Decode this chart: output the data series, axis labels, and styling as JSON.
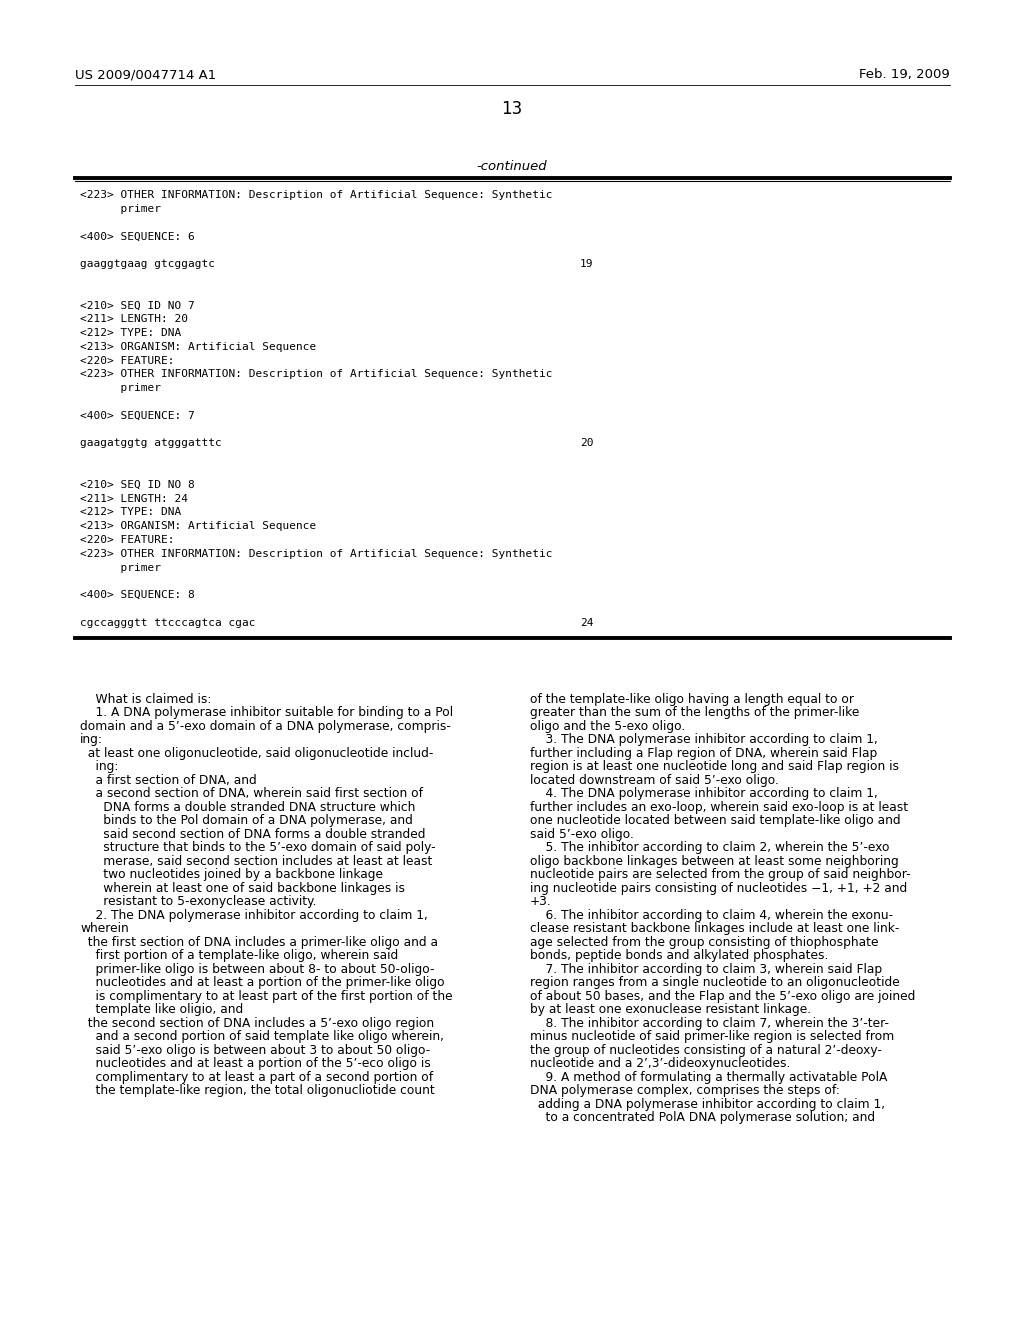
{
  "background_color": "#ffffff",
  "header_left": "US 2009/0047714 A1",
  "header_right": "Feb. 19, 2009",
  "page_number": "13",
  "continued_label": "-continued",
  "table_lines": [
    {
      "text": "<223> OTHER INFORMATION: Description of Artificial Sequence: Synthetic",
      "type": "mono"
    },
    {
      "text": "      primer",
      "type": "mono"
    },
    {
      "text": "",
      "type": "mono"
    },
    {
      "text": "<400> SEQUENCE: 6",
      "type": "mono"
    },
    {
      "text": "",
      "type": "mono"
    },
    {
      "text": "gaaggtgaag gtcggagtc",
      "type": "seq",
      "num": "19"
    },
    {
      "text": "",
      "type": "mono"
    },
    {
      "text": "",
      "type": "mono"
    },
    {
      "text": "<210> SEQ ID NO 7",
      "type": "mono"
    },
    {
      "text": "<211> LENGTH: 20",
      "type": "mono"
    },
    {
      "text": "<212> TYPE: DNA",
      "type": "mono"
    },
    {
      "text": "<213> ORGANISM: Artificial Sequence",
      "type": "mono"
    },
    {
      "text": "<220> FEATURE:",
      "type": "mono"
    },
    {
      "text": "<223> OTHER INFORMATION: Description of Artificial Sequence: Synthetic",
      "type": "mono"
    },
    {
      "text": "      primer",
      "type": "mono"
    },
    {
      "text": "",
      "type": "mono"
    },
    {
      "text": "<400> SEQUENCE: 7",
      "type": "mono"
    },
    {
      "text": "",
      "type": "mono"
    },
    {
      "text": "gaagatggtg atgggatttc",
      "type": "seq",
      "num": "20"
    },
    {
      "text": "",
      "type": "mono"
    },
    {
      "text": "",
      "type": "mono"
    },
    {
      "text": "<210> SEQ ID NO 8",
      "type": "mono"
    },
    {
      "text": "<211> LENGTH: 24",
      "type": "mono"
    },
    {
      "text": "<212> TYPE: DNA",
      "type": "mono"
    },
    {
      "text": "<213> ORGANISM: Artificial Sequence",
      "type": "mono"
    },
    {
      "text": "<220> FEATURE:",
      "type": "mono"
    },
    {
      "text": "<223> OTHER INFORMATION: Description of Artificial Sequence: Synthetic",
      "type": "mono"
    },
    {
      "text": "      primer",
      "type": "mono"
    },
    {
      "text": "",
      "type": "mono"
    },
    {
      "text": "<400> SEQUENCE: 8",
      "type": "mono"
    },
    {
      "text": "",
      "type": "mono"
    },
    {
      "text": "cgccagggtt ttcccagtca cgac",
      "type": "seq",
      "num": "24"
    }
  ],
  "claims_left": [
    "    What is claimed is:",
    "    1. A DNA polymerase inhibitor suitable for binding to a Pol",
    "domain and a 5’-exo domain of a DNA polymerase, compris-",
    "ing:",
    "  at least one oligonucleotide, said oligonucleotide includ-",
    "    ing:",
    "    a first section of DNA, and",
    "    a second section of DNA, wherein said first section of",
    "      DNA forms a double stranded DNA structure which",
    "      binds to the Pol domain of a DNA polymerase, and",
    "      said second section of DNA forms a double stranded",
    "      structure that binds to the 5’-exo domain of said poly-",
    "      merase, said second section includes at least at least",
    "      two nucleotides joined by a backbone linkage",
    "      wherein at least one of said backbone linkages is",
    "      resistant to 5-exonyclease activity.",
    "    2. The DNA polymerase inhibitor according to claim 1,",
    "wherein",
    "  the first section of DNA includes a primer-like oligo and a",
    "    first portion of a template-like oligo, wherein said",
    "    primer-like oligo is between about 8- to about 50-oligo-",
    "    nucleotides and at least a portion of the primer-like oligo",
    "    is complimentary to at least part of the first portion of the",
    "    template like oligio, and",
    "  the second section of DNA includes a 5’-exo oligo region",
    "    and a second portion of said template like oligo wherein,",
    "    said 5’-exo oligo is between about 3 to about 50 oligo-",
    "    nucleotides and at least a portion of the 5’-eco oligo is",
    "    complimentary to at least a part of a second portion of",
    "    the template-like region, the total oligonucliotide count"
  ],
  "claims_right": [
    "of the template-like oligo having a length equal to or",
    "greater than the sum of the lengths of the primer-like",
    "oligo and the 5-exo oligo.",
    "    3. The DNA polymerase inhibitor according to claim 1,",
    "further including a Flap region of DNA, wherein said Flap",
    "region is at least one nucleotide long and said Flap region is",
    "located downstream of said 5’-exo oligo.",
    "    4. The DNA polymerase inhibitor according to claim 1,",
    "further includes an exo-loop, wherein said exo-loop is at least",
    "one nucleotide located between said template-like oligo and",
    "said 5’-exo oligo.",
    "    5. The inhibitor according to claim 2, wherein the 5’-exo",
    "oligo backbone linkages between at least some neighboring",
    "nucleotide pairs are selected from the group of said neighbor-",
    "ing nucleotide pairs consisting of nucleotides −1, +1, +2 and",
    "+3.",
    "    6. The inhibitor according to claim 4, wherein the exonu-",
    "clease resistant backbone linkages include at least one link-",
    "age selected from the group consisting of thiophosphate",
    "bonds, peptide bonds and alkylated phosphates.",
    "    7. The inhibitor according to claim 3, wherein said Flap",
    "region ranges from a single nucleotide to an oligonucleotide",
    "of about 50 bases, and the Flap and the 5’-exo oligo are joined",
    "by at least one exonuclease resistant linkage.",
    "    8. The inhibitor according to claim 7, wherein the 3’-ter-",
    "minus nucleotide of said primer-like region is selected from",
    "the group of nucleotides consisting of a natural 2’-deoxy-",
    "nucleotide and a 2’,3’-dideoxynucleotides.",
    "    9. A method of formulating a thermally activatable PolA",
    "DNA polymerase complex, comprises the steps of:",
    "  adding a DNA polymerase inhibitor according to claim 1,",
    "    to a concentrated PolA DNA polymerase solution; and"
  ]
}
